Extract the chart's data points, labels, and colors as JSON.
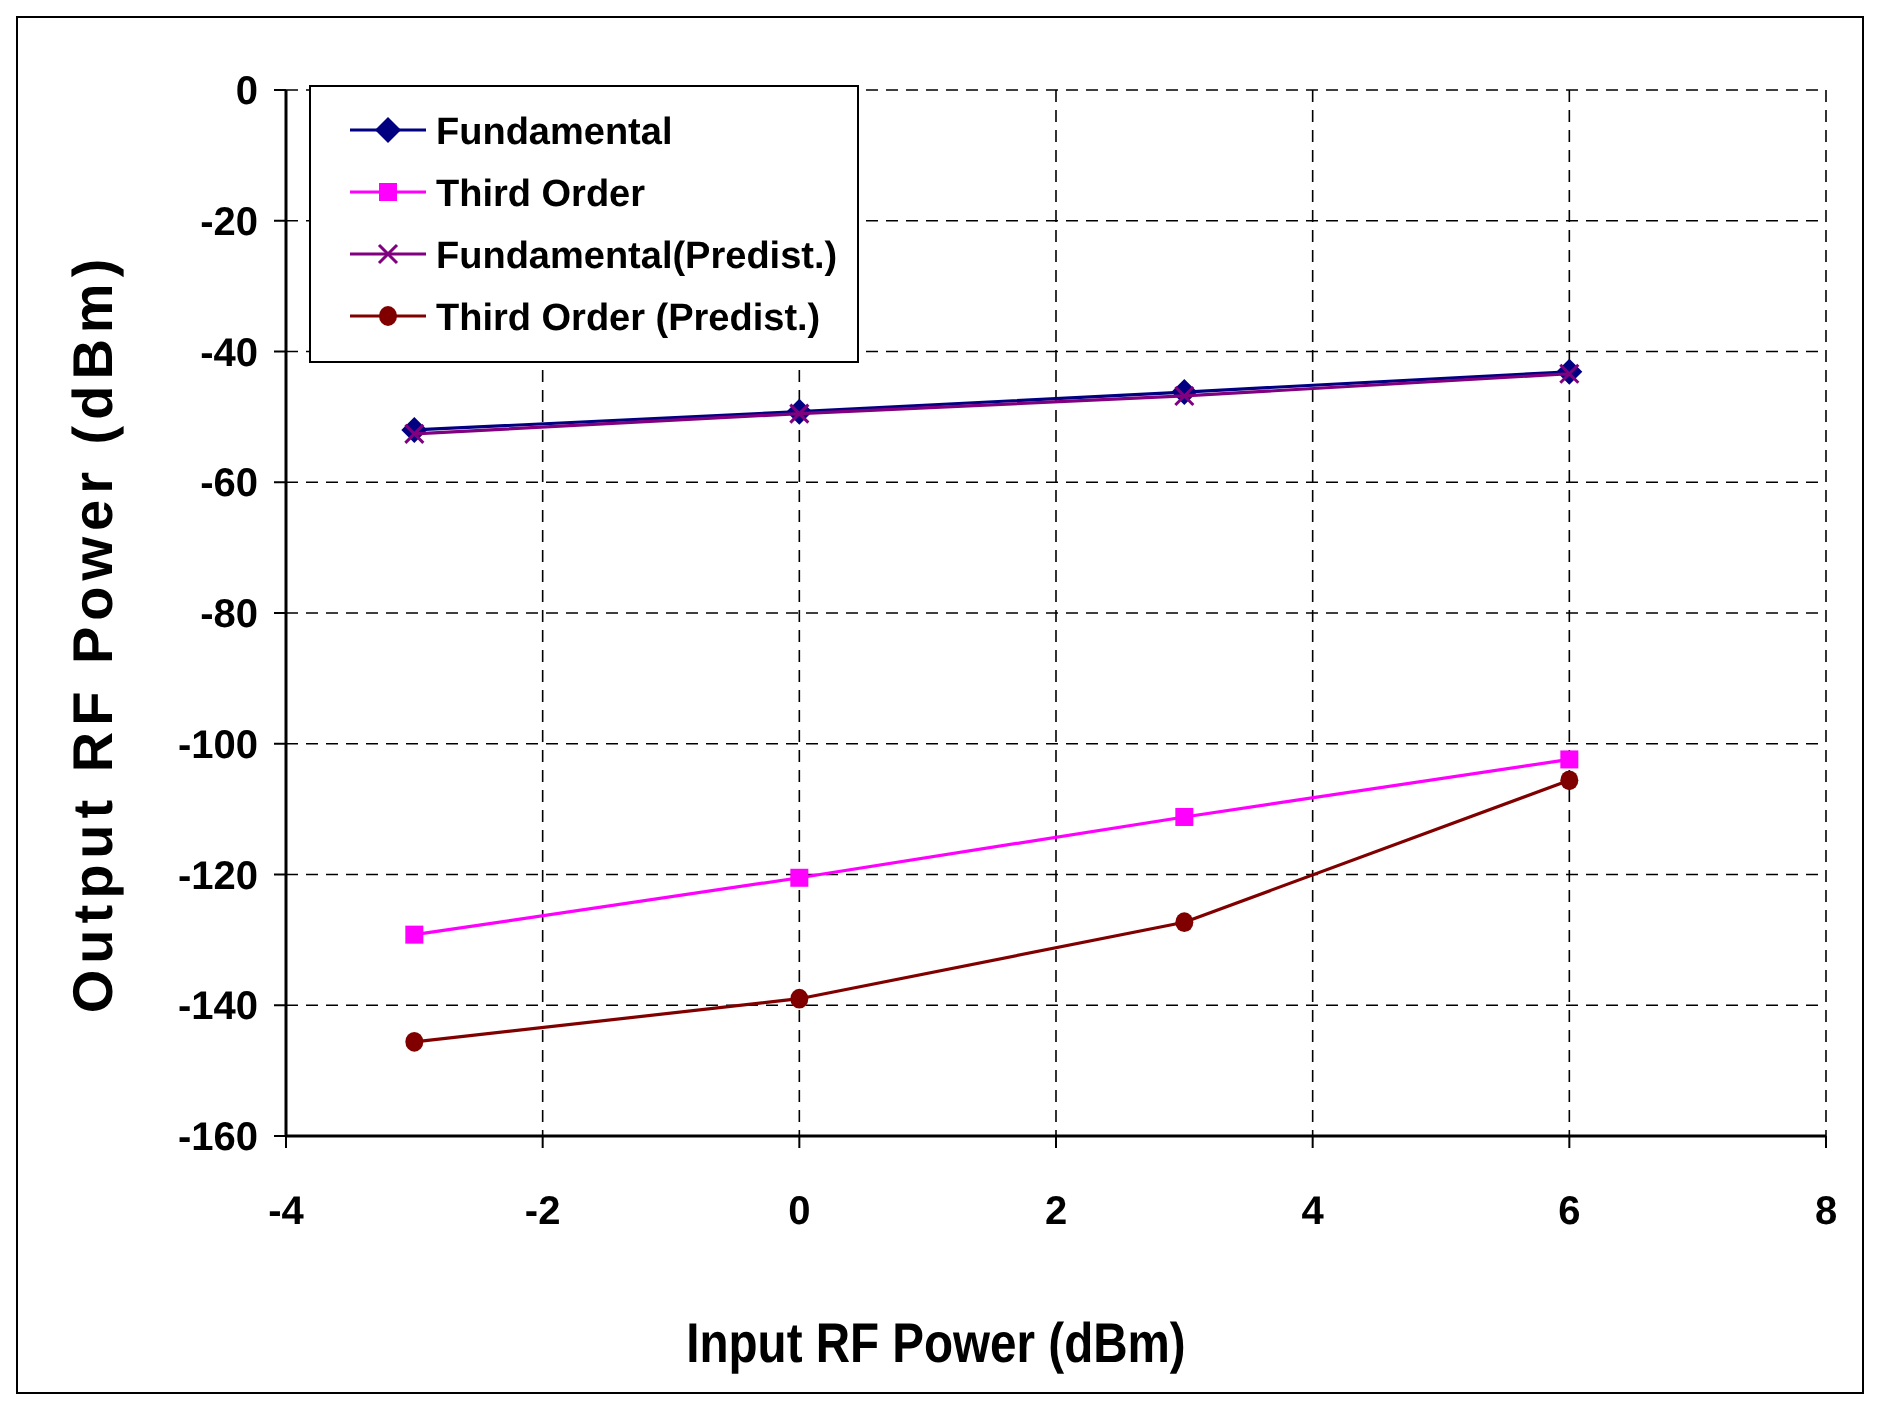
{
  "chart_data": {
    "type": "line",
    "xlabel": "Input RF Power (dBm)",
    "ylabel": "Output RF Power (dBm)",
    "x": [
      -3,
      0,
      3,
      6
    ],
    "series": [
      {
        "name": "Fundamental",
        "color": "#000080",
        "marker": "diamond",
        "values": [
          -52,
          -49.2,
          -46.2,
          -43.1
        ]
      },
      {
        "name": "Third Order",
        "color": "#ff00ff",
        "marker": "square",
        "values": [
          -129.2,
          -120.5,
          -111.2,
          -102.4
        ]
      },
      {
        "name": "Fundamental(Predist.)",
        "color": "#800080",
        "marker": "cross",
        "values": [
          -52.6,
          -49.5,
          -46.8,
          -43.4
        ]
      },
      {
        "name": "Third Order (Predist.)",
        "color": "#800000",
        "marker": "circle",
        "values": [
          -145.6,
          -139,
          -127.3,
          -105.6
        ]
      }
    ],
    "xlim": [
      -4,
      8
    ],
    "xticks": [
      -4,
      -2,
      0,
      2,
      4,
      6,
      8
    ],
    "ylim": [
      -160,
      0
    ],
    "yticks": [
      -160,
      -140,
      -120,
      -100,
      -80,
      -60,
      -40,
      -20,
      0
    ],
    "grid": true,
    "line_style": "solid",
    "legend": "top left"
  }
}
